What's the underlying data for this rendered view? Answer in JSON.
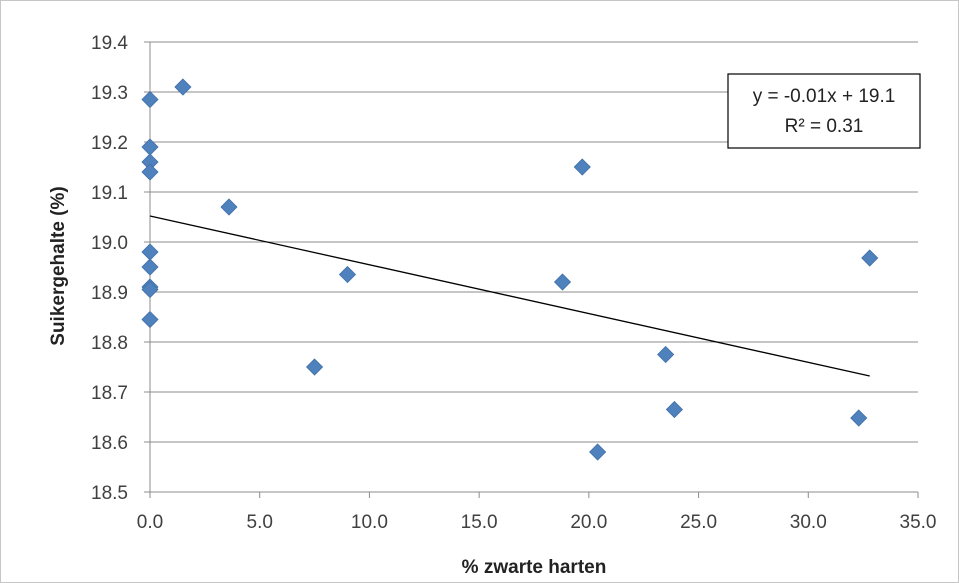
{
  "chart_data": {
    "type": "scatter",
    "title": "",
    "xlabel": "% zwarte harten",
    "ylabel": "Suikergehalte (%)",
    "xlim": [
      0,
      35
    ],
    "ylim": [
      18.5,
      19.4
    ],
    "x_ticks": [
      0,
      5,
      10,
      15,
      20,
      25,
      30,
      35
    ],
    "x_tick_labels": [
      "0.0",
      "5.0",
      "10.0",
      "15.0",
      "20.0",
      "25.0",
      "30.0",
      "35.0"
    ],
    "y_ticks": [
      18.5,
      18.6,
      18.7,
      18.8,
      18.9,
      19.0,
      19.1,
      19.2,
      19.3,
      19.4
    ],
    "y_tick_labels": [
      "18.5",
      "18.6",
      "18.7",
      "18.8",
      "18.9",
      "19.0",
      "19.1",
      "19.2",
      "19.3",
      "19.4"
    ],
    "grid": "horizontal",
    "marker_color": "#4f81bd",
    "trendline_color": "#000000",
    "series": [
      {
        "marker": "diamond",
        "points": [
          {
            "x": 0.0,
            "y": 19.285
          },
          {
            "x": 0.0,
            "y": 19.19
          },
          {
            "x": 0.0,
            "y": 19.16
          },
          {
            "x": 0.0,
            "y": 19.14
          },
          {
            "x": 0.0,
            "y": 18.98
          },
          {
            "x": 0.0,
            "y": 18.95
          },
          {
            "x": 0.0,
            "y": 18.91
          },
          {
            "x": 0.0,
            "y": 18.905
          },
          {
            "x": 0.0,
            "y": 18.845
          },
          {
            "x": 1.5,
            "y": 19.31
          },
          {
            "x": 3.6,
            "y": 19.07
          },
          {
            "x": 7.5,
            "y": 18.75
          },
          {
            "x": 9.0,
            "y": 18.935
          },
          {
            "x": 18.8,
            "y": 18.92
          },
          {
            "x": 19.7,
            "y": 19.15
          },
          {
            "x": 20.4,
            "y": 18.58
          },
          {
            "x": 23.5,
            "y": 18.775
          },
          {
            "x": 23.9,
            "y": 18.665
          },
          {
            "x": 32.3,
            "y": 18.648
          },
          {
            "x": 32.8,
            "y": 18.968
          }
        ]
      }
    ],
    "trendline": {
      "type": "linear",
      "x_start": 0.0,
      "y_start": 19.052,
      "x_end": 32.8,
      "y_end": 18.732,
      "equation": "y = -0.01x + 19.1",
      "r_squared": "R² = 0.31",
      "label_position": "top-right"
    }
  }
}
